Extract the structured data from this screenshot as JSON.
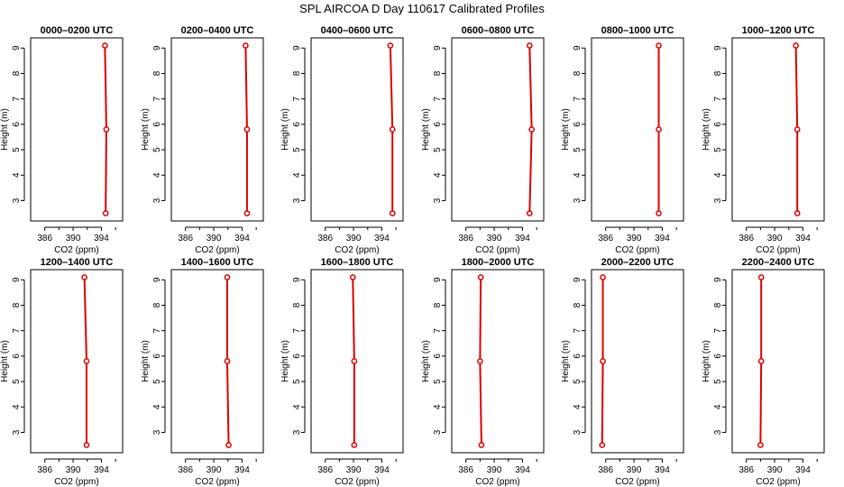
{
  "figure": {
    "title": "SPL AIRCOA D  Day 110617  Calibrated Profiles"
  },
  "chart_data": [
    {
      "type": "line",
      "title": "0000–0200 UTC",
      "xlabel": "CO2 (ppm)",
      "ylabel": "Height (m)",
      "xlim": [
        384,
        397
      ],
      "ylim": [
        2.2,
        9.4
      ],
      "xticks": [
        386,
        390,
        394
      ],
      "yticks": [
        3,
        4,
        5,
        6,
        7,
        8,
        9
      ],
      "grid": false,
      "points": [
        {
          "x": 394.6,
          "y": 2.5
        },
        {
          "x": 394.7,
          "y": 5.8
        },
        {
          "x": 394.5,
          "y": 9.1
        }
      ]
    },
    {
      "type": "line",
      "title": "0200–0400 UTC",
      "xlabel": "CO2 (ppm)",
      "ylabel": "Height (m)",
      "xlim": [
        384,
        397
      ],
      "ylim": [
        2.2,
        9.4
      ],
      "xticks": [
        386,
        390,
        394
      ],
      "yticks": [
        3,
        4,
        5,
        6,
        7,
        8,
        9
      ],
      "grid": false,
      "points": [
        {
          "x": 394.7,
          "y": 2.5
        },
        {
          "x": 394.7,
          "y": 5.8
        },
        {
          "x": 394.5,
          "y": 9.1
        }
      ]
    },
    {
      "type": "line",
      "title": "0400–0600 UTC",
      "xlabel": "CO2 (ppm)",
      "ylabel": "Height (m)",
      "xlim": [
        384,
        397
      ],
      "ylim": [
        2.2,
        9.4
      ],
      "xticks": [
        386,
        390,
        394
      ],
      "yticks": [
        3,
        4,
        5,
        6,
        7,
        8,
        9
      ],
      "grid": false,
      "points": [
        {
          "x": 395.5,
          "y": 2.5
        },
        {
          "x": 395.5,
          "y": 5.8
        },
        {
          "x": 395.2,
          "y": 9.1
        }
      ]
    },
    {
      "type": "line",
      "title": "0600–0800 UTC",
      "xlabel": "CO2 (ppm)",
      "ylabel": "Height (m)",
      "xlim": [
        384,
        397
      ],
      "ylim": [
        2.2,
        9.4
      ],
      "xticks": [
        386,
        390,
        394
      ],
      "yticks": [
        3,
        4,
        5,
        6,
        7,
        8,
        9
      ],
      "grid": false,
      "points": [
        {
          "x": 395.0,
          "y": 2.5
        },
        {
          "x": 395.3,
          "y": 5.8
        },
        {
          "x": 395.0,
          "y": 9.1
        }
      ]
    },
    {
      "type": "line",
      "title": "0800–1000 UTC",
      "xlabel": "CO2 (ppm)",
      "ylabel": "Height (m)",
      "xlim": [
        384,
        397
      ],
      "ylim": [
        2.2,
        9.4
      ],
      "xticks": [
        386,
        390,
        394
      ],
      "yticks": [
        3,
        4,
        5,
        6,
        7,
        8,
        9
      ],
      "grid": false,
      "points": [
        {
          "x": 393.5,
          "y": 2.5
        },
        {
          "x": 393.5,
          "y": 5.8
        },
        {
          "x": 393.5,
          "y": 9.1
        }
      ]
    },
    {
      "type": "line",
      "title": "1000–1200 UTC",
      "xlabel": "CO2 (ppm)",
      "ylabel": "Height (m)",
      "xlim": [
        384,
        397
      ],
      "ylim": [
        2.2,
        9.4
      ],
      "xticks": [
        386,
        390,
        394
      ],
      "yticks": [
        3,
        4,
        5,
        6,
        7,
        8,
        9
      ],
      "grid": false,
      "points": [
        {
          "x": 393.2,
          "y": 2.5
        },
        {
          "x": 393.2,
          "y": 5.8
        },
        {
          "x": 393.0,
          "y": 9.1
        }
      ]
    },
    {
      "type": "line",
      "title": "1200–1400 UTC",
      "xlabel": "CO2 (ppm)",
      "ylabel": "Height (m)",
      "xlim": [
        384,
        397
      ],
      "ylim": [
        2.2,
        9.4
      ],
      "xticks": [
        386,
        390,
        394
      ],
      "yticks": [
        3,
        4,
        5,
        6,
        7,
        8,
        9
      ],
      "grid": false,
      "points": [
        {
          "x": 391.9,
          "y": 2.5
        },
        {
          "x": 391.9,
          "y": 5.8
        },
        {
          "x": 391.6,
          "y": 9.1
        }
      ]
    },
    {
      "type": "line",
      "title": "1400–1600 UTC",
      "xlabel": "CO2 (ppm)",
      "ylabel": "Height (m)",
      "xlim": [
        384,
        397
      ],
      "ylim": [
        2.2,
        9.4
      ],
      "xticks": [
        386,
        390,
        394
      ],
      "yticks": [
        3,
        4,
        5,
        6,
        7,
        8,
        9
      ],
      "grid": false,
      "points": [
        {
          "x": 392.1,
          "y": 2.5
        },
        {
          "x": 391.9,
          "y": 5.8
        },
        {
          "x": 391.9,
          "y": 9.1
        }
      ]
    },
    {
      "type": "line",
      "title": "1600–1800 UTC",
      "xlabel": "CO2 (ppm)",
      "ylabel": "Height (m)",
      "xlim": [
        384,
        397
      ],
      "ylim": [
        2.2,
        9.4
      ],
      "xticks": [
        386,
        390,
        394
      ],
      "yticks": [
        3,
        4,
        5,
        6,
        7,
        8,
        9
      ],
      "grid": false,
      "points": [
        {
          "x": 390.1,
          "y": 2.5
        },
        {
          "x": 390.1,
          "y": 5.8
        },
        {
          "x": 389.9,
          "y": 9.1
        }
      ]
    },
    {
      "type": "line",
      "title": "1800–2000 UTC",
      "xlabel": "CO2 (ppm)",
      "ylabel": "Height (m)",
      "xlim": [
        384,
        397
      ],
      "ylim": [
        2.2,
        9.4
      ],
      "xticks": [
        386,
        390,
        394
      ],
      "yticks": [
        3,
        4,
        5,
        6,
        7,
        8,
        9
      ],
      "grid": false,
      "points": [
        {
          "x": 388.2,
          "y": 2.5
        },
        {
          "x": 388.0,
          "y": 5.8
        },
        {
          "x": 388.1,
          "y": 9.1
        }
      ]
    },
    {
      "type": "line",
      "title": "2000–2200 UTC",
      "xlabel": "CO2 (ppm)",
      "ylabel": "Height (m)",
      "xlim": [
        384,
        397
      ],
      "ylim": [
        2.2,
        9.4
      ],
      "xticks": [
        386,
        390,
        394
      ],
      "yticks": [
        3,
        4,
        5,
        6,
        7,
        8,
        9
      ],
      "grid": false,
      "points": [
        {
          "x": 385.5,
          "y": 2.5
        },
        {
          "x": 385.6,
          "y": 5.8
        },
        {
          "x": 385.6,
          "y": 9.1
        }
      ]
    },
    {
      "type": "line",
      "title": "2200–2400 UTC",
      "xlabel": "CO2 (ppm)",
      "ylabel": "Height (m)",
      "xlim": [
        384,
        397
      ],
      "ylim": [
        2.2,
        9.4
      ],
      "xticks": [
        386,
        390,
        394
      ],
      "yticks": [
        3,
        4,
        5,
        6,
        7,
        8,
        9
      ],
      "grid": false,
      "points": [
        {
          "x": 388.0,
          "y": 2.5
        },
        {
          "x": 388.1,
          "y": 5.8
        },
        {
          "x": 388.1,
          "y": 9.1
        }
      ]
    }
  ],
  "style": {
    "line_color": "#dd0000",
    "axis_color": "#000000",
    "background": "#ffffff"
  }
}
